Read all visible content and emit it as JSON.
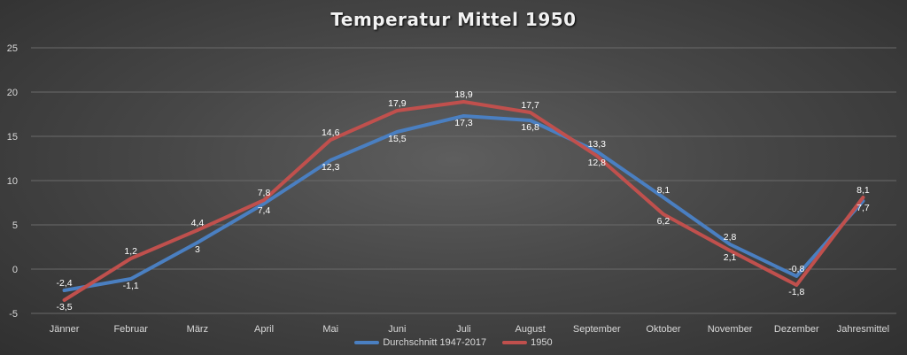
{
  "chart_data": {
    "type": "line",
    "title": "Temperatur Mittel 1950",
    "categories": [
      "Jänner",
      "Februar",
      "März",
      "April",
      "Mai",
      "Juni",
      "Juli",
      "August",
      "September",
      "Oktober",
      "November",
      "Dezember",
      "Jahresmittel"
    ],
    "ylim": [
      -5,
      25
    ],
    "yticks": [
      "-5",
      "0",
      "5",
      "10",
      "15",
      "20",
      "25"
    ],
    "grid": true,
    "legend_position": "bottom",
    "series": [
      {
        "name": "Durchschnitt 1947-2017",
        "color": "#4a7fc1",
        "values": [
          -2.4,
          -1.1,
          3,
          7.4,
          12.3,
          15.5,
          17.3,
          16.8,
          13.3,
          8.1,
          2.8,
          -0.8,
          7.7
        ],
        "labels": [
          "-2,4",
          "-1,1",
          "3",
          "7,4",
          "12,3",
          "15,5",
          "17,3",
          "16,8",
          "13,3",
          "8,1",
          "2,8",
          "-0,8",
          "7,7"
        ]
      },
      {
        "name": "1950",
        "color": "#c0504d",
        "values": [
          -3.5,
          1.2,
          4.4,
          7.8,
          14.6,
          17.9,
          18.9,
          17.7,
          12.8,
          6.2,
          2.1,
          -1.8,
          8.1
        ],
        "labels": [
          "-3,5",
          "1,2",
          "4,4",
          "7,8",
          "14,6",
          "17,9",
          "18,9",
          "17,7",
          "12,8",
          "6,2",
          "2,1",
          "-1,8",
          "8,1"
        ]
      }
    ]
  }
}
